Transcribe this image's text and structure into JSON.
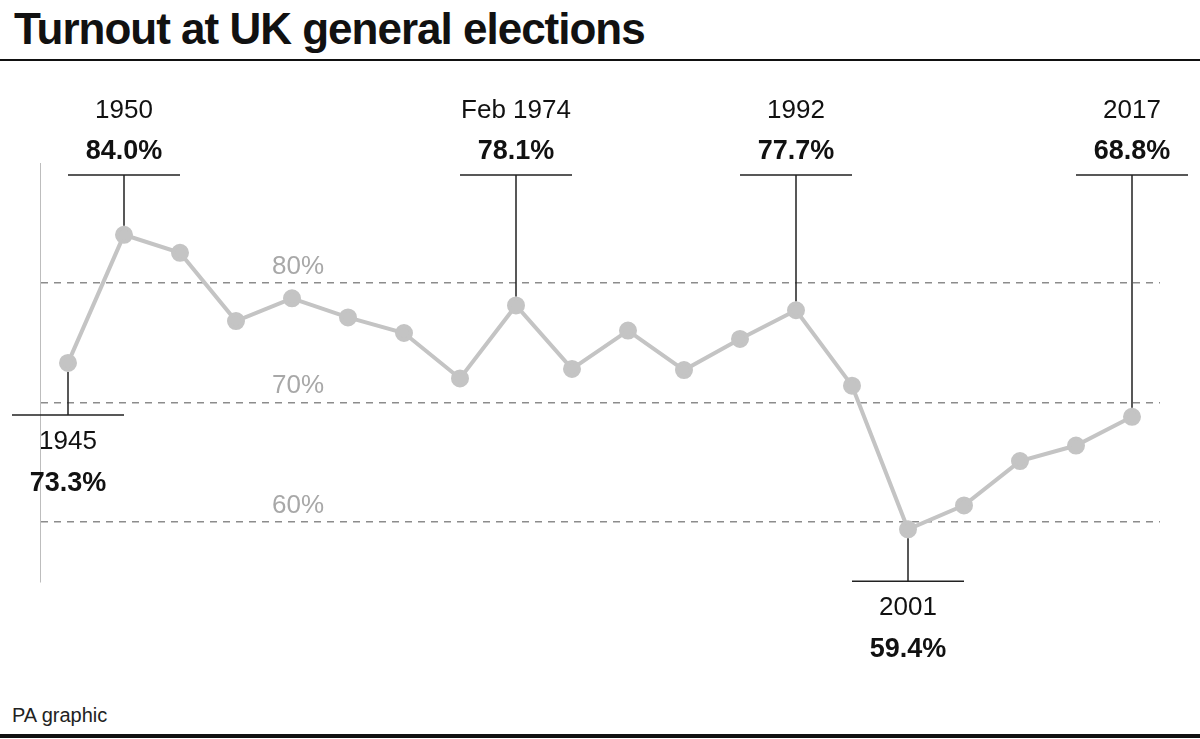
{
  "chart_data": {
    "type": "line",
    "title": "Turnout at UK general elections",
    "source": "PA graphic",
    "categories": [
      "1945",
      "1950",
      null,
      null,
      null,
      null,
      null,
      null,
      "Feb 1974",
      null,
      null,
      null,
      null,
      "1992",
      null,
      "2001",
      null,
      null,
      null,
      "2017"
    ],
    "values": [
      73.3,
      84.0,
      82.5,
      76.8,
      78.7,
      77.1,
      75.8,
      72.0,
      78.1,
      72.8,
      76.0,
      72.7,
      75.3,
      77.7,
      71.4,
      59.4,
      61.4,
      65.1,
      66.4,
      68.8
    ],
    "value_labels": [
      "73.3%",
      "84.0%",
      null,
      null,
      null,
      null,
      null,
      null,
      "78.1%",
      null,
      null,
      null,
      null,
      "77.7%",
      null,
      "59.4%",
      null,
      null,
      null,
      "68.8%"
    ],
    "data_labels": true,
    "color": "#c4c4c4",
    "marker": "circle",
    "ylim": [
      55,
      90
    ],
    "yticks": [
      {
        "value": 60,
        "label": "60%"
      },
      {
        "value": 70,
        "label": "70%"
      },
      {
        "value": 80,
        "label": "80%"
      }
    ],
    "grid": true,
    "tick_labels": "y"
  }
}
